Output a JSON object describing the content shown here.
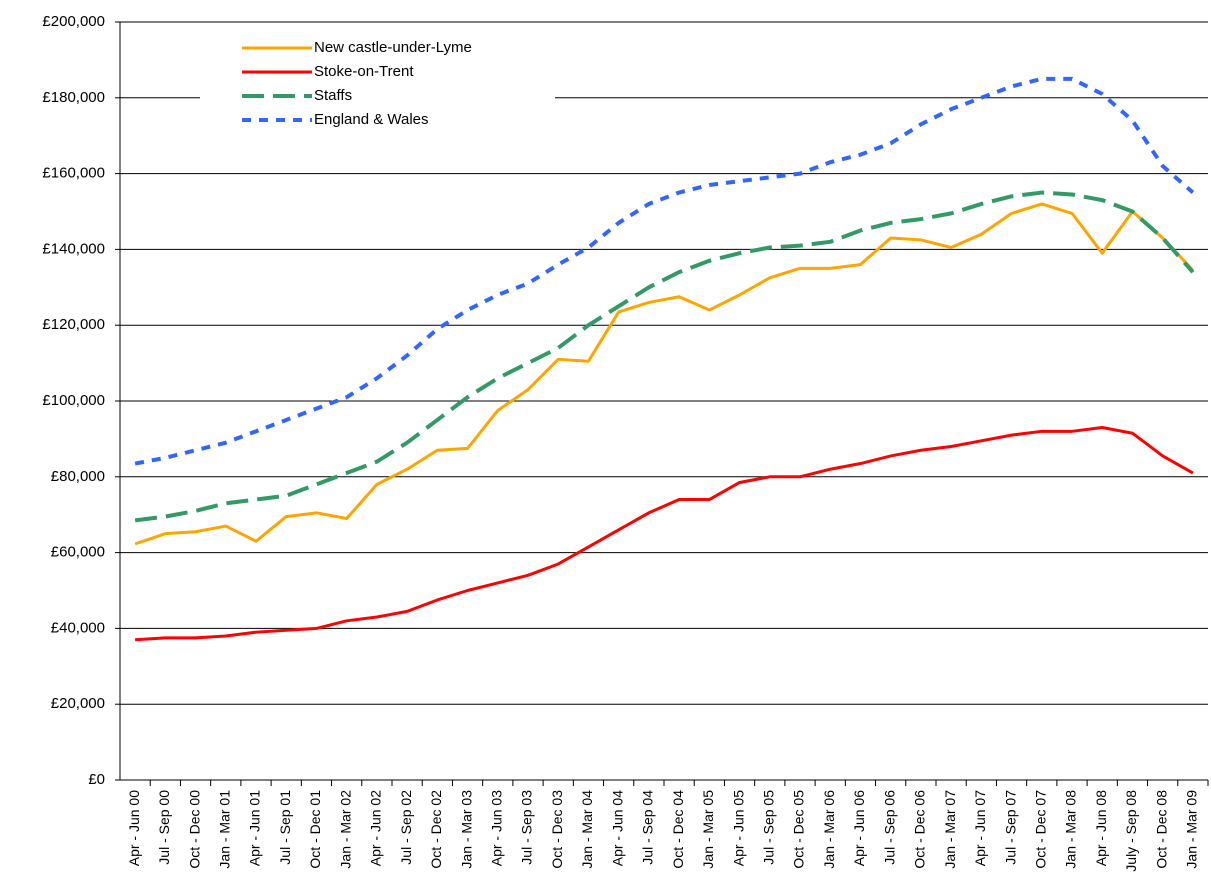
{
  "chart_data": {
    "type": "line",
    "categories": [
      "Apr - Jun 00",
      "Jul - Sep 00",
      "Oct - Dec 00",
      "Jan - Mar 01",
      "Apr - Jun 01",
      "Jul - Sep 01",
      "Oct - Dec 01",
      "Jan - Mar 02",
      "Apr - Jun 02",
      "Jul - Sep 02",
      "Oct - Dec 02",
      "Jan - Mar 03",
      "Apr - Jun 03",
      "Jul - Sep 03",
      "Oct - Dec 03",
      "Jan - Mar 04",
      "Apr - Jun 04",
      "Jul - Sep 04",
      "Oct - Dec 04",
      "Jan - Mar 05",
      "Apr - Jun 05",
      "Jul - Sep 05",
      "Oct - Dec 05",
      "Jan - Mar 06",
      "Apr - Jun 06",
      "Jul - Sep 06",
      "Oct - Dec 06",
      "Jan - Mar 07",
      "Apr - Jun 07",
      "Jul - Sep 07",
      "Oct - Dec 07",
      "Jan - Mar 08",
      "Apr - Jun 08",
      "July - Sep 08",
      "Oct - Dec 08",
      "Jan - Mar 09"
    ],
    "series": [
      {
        "name": "New castle-under-Lyme",
        "color": "#ffa500",
        "style": "solid",
        "values": [
          62300,
          65000,
          65500,
          67000,
          63000,
          69500,
          70500,
          69000,
          78000,
          82000,
          87000,
          87500,
          97500,
          103000,
          111000,
          110500,
          123500,
          126000,
          127500,
          124000,
          128000,
          132500,
          135000,
          135000,
          136000,
          143000,
          142500,
          140500,
          144000,
          149500,
          152000,
          149500,
          139000,
          150000,
          143000,
          134500
        ]
      },
      {
        "name": "Stoke-on-Trent",
        "color": "#ff0000",
        "style": "solid",
        "values": [
          37000,
          37500,
          37500,
          38000,
          39000,
          39500,
          40000,
          42000,
          43000,
          44500,
          47500,
          50000,
          52000,
          54000,
          57000,
          61500,
          66000,
          70500,
          74000,
          74000,
          78500,
          80000,
          80000,
          82000,
          83500,
          85500,
          87000,
          88000,
          89500,
          91000,
          92000,
          92000,
          93000,
          91500,
          85500,
          81000
        ]
      },
      {
        "name": "Staffs",
        "color": "#339966",
        "style": "dash",
        "values": [
          68500,
          69500,
          71000,
          73000,
          74000,
          75000,
          78000,
          81000,
          84000,
          89000,
          95000,
          101000,
          106000,
          110000,
          114000,
          120000,
          125000,
          130000,
          134000,
          137000,
          139000,
          140500,
          141000,
          142000,
          145000,
          147000,
          148000,
          149500,
          152000,
          154000,
          155000,
          154500,
          153000,
          150000,
          143000,
          134000
        ]
      },
      {
        "name": "England & Wales",
        "color": "#3366ff",
        "style": "dot",
        "values": [
          83500,
          85000,
          87000,
          89000,
          92000,
          95000,
          98000,
          101000,
          106000,
          112000,
          119000,
          124000,
          128000,
          131000,
          136000,
          140500,
          147000,
          152000,
          155000,
          157000,
          158000,
          159000,
          160000,
          163000,
          165000,
          168000,
          173000,
          177000,
          180000,
          183000,
          185000,
          185000,
          181000,
          174000,
          162000,
          155000
        ]
      }
    ],
    "ylim": [
      0,
      200000
    ],
    "yticks": [
      {
        "value": 0,
        "label": "£0"
      },
      {
        "value": 20000,
        "label": "£20,000"
      },
      {
        "value": 40000,
        "label": "£40,000"
      },
      {
        "value": 60000,
        "label": "£60,000"
      },
      {
        "value": 80000,
        "label": "£80,000"
      },
      {
        "value": 100000,
        "label": "£100,000"
      },
      {
        "value": 120000,
        "label": "£120,000"
      },
      {
        "value": 140000,
        "label": "£140,000"
      },
      {
        "value": 160000,
        "label": "£160,000"
      },
      {
        "value": 180000,
        "label": "£180,000"
      },
      {
        "value": 200000,
        "label": "£200,000"
      }
    ],
    "grid": true,
    "legend": "upper left"
  }
}
